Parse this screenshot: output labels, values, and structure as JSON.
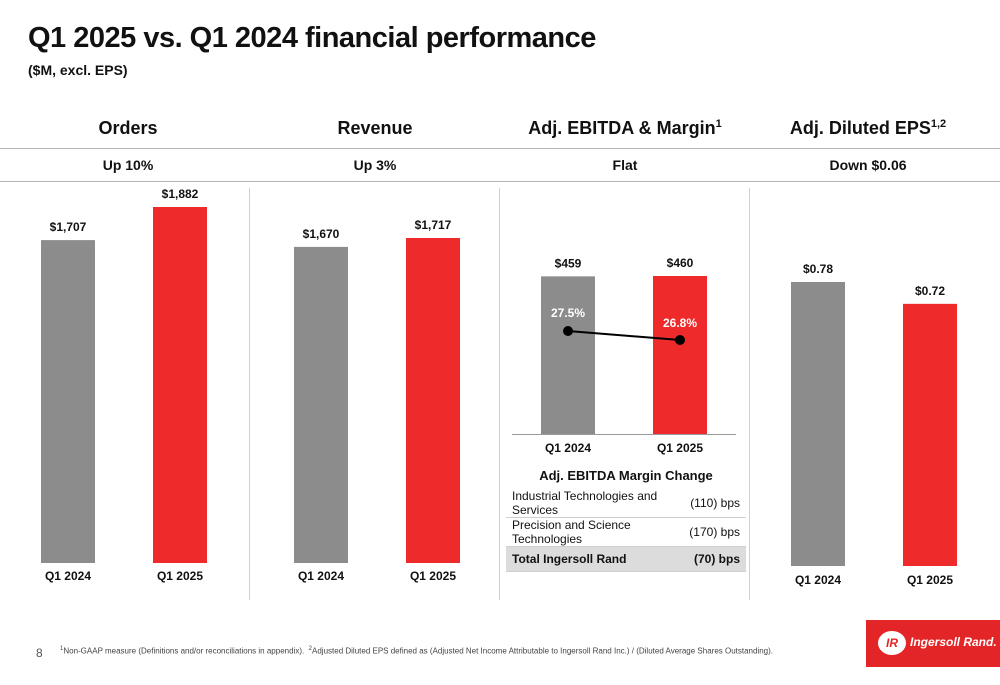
{
  "page": {
    "title": "Q1 2025 vs. Q1 2024 financial performance",
    "subtitle": "($M, excl. EPS)",
    "page_number": "8"
  },
  "headers": [
    {
      "label": "Orders",
      "sup": "",
      "change": "Up 10%"
    },
    {
      "label": "Revenue",
      "sup": "",
      "change": "Up 3%"
    },
    {
      "label": "Adj. EBITDA & Margin",
      "sup": "1",
      "change": "Flat"
    },
    {
      "label": "Adj. Diluted EPS",
      "sup": "1,2",
      "change": "Down $0.06"
    }
  ],
  "colors": {
    "prior": "#8c8c8c",
    "current": "#ee2a2a",
    "line": "#000000"
  },
  "chart_data": [
    {
      "type": "bar",
      "title": "Orders",
      "categories": [
        "Q1 2024",
        "Q1 2025"
      ],
      "values": [
        1707,
        1882
      ],
      "data_labels": [
        "$1,707",
        "$1,882"
      ]
    },
    {
      "type": "bar",
      "title": "Revenue",
      "categories": [
        "Q1 2024",
        "Q1 2025"
      ],
      "values": [
        1670,
        1717
      ],
      "data_labels": [
        "$1,670",
        "$1,717"
      ]
    },
    {
      "type": "bar",
      "title": "Adj. EBITDA & Margin",
      "categories": [
        "Q1 2024",
        "Q1 2025"
      ],
      "values": [
        459,
        460
      ],
      "data_labels": [
        "$459",
        "$460"
      ],
      "margin": {
        "values": [
          27.5,
          26.8
        ],
        "labels": [
          "27.5%",
          "26.8%"
        ]
      }
    },
    {
      "type": "bar",
      "title": "Adj. Diluted EPS",
      "categories": [
        "Q1 2024",
        "Q1 2025"
      ],
      "values": [
        0.78,
        0.72
      ],
      "data_labels": [
        "$0.78",
        "$0.72"
      ]
    }
  ],
  "margin_table": {
    "title": "Adj. EBITDA Margin Change",
    "rows": [
      {
        "label": "Industrial Technologies and Services",
        "value": "(110) bps"
      },
      {
        "label": "Precision and Science Technologies",
        "value": "(170) bps"
      },
      {
        "label": "Total Ingersoll Rand",
        "value": "(70) bps"
      }
    ]
  },
  "footnote": {
    "n1": "1",
    "t1": "Non-GAAP measure (Definitions and/or reconciliations in appendix).",
    "n2": "2",
    "t2": "Adjusted Diluted EPS defined as (Adjusted Net Income Attributable to Ingersoll Rand Inc.) / (Diluted Average Shares Outstanding)."
  },
  "logo": {
    "mark": "IR",
    "text": "Ingersoll Rand."
  }
}
